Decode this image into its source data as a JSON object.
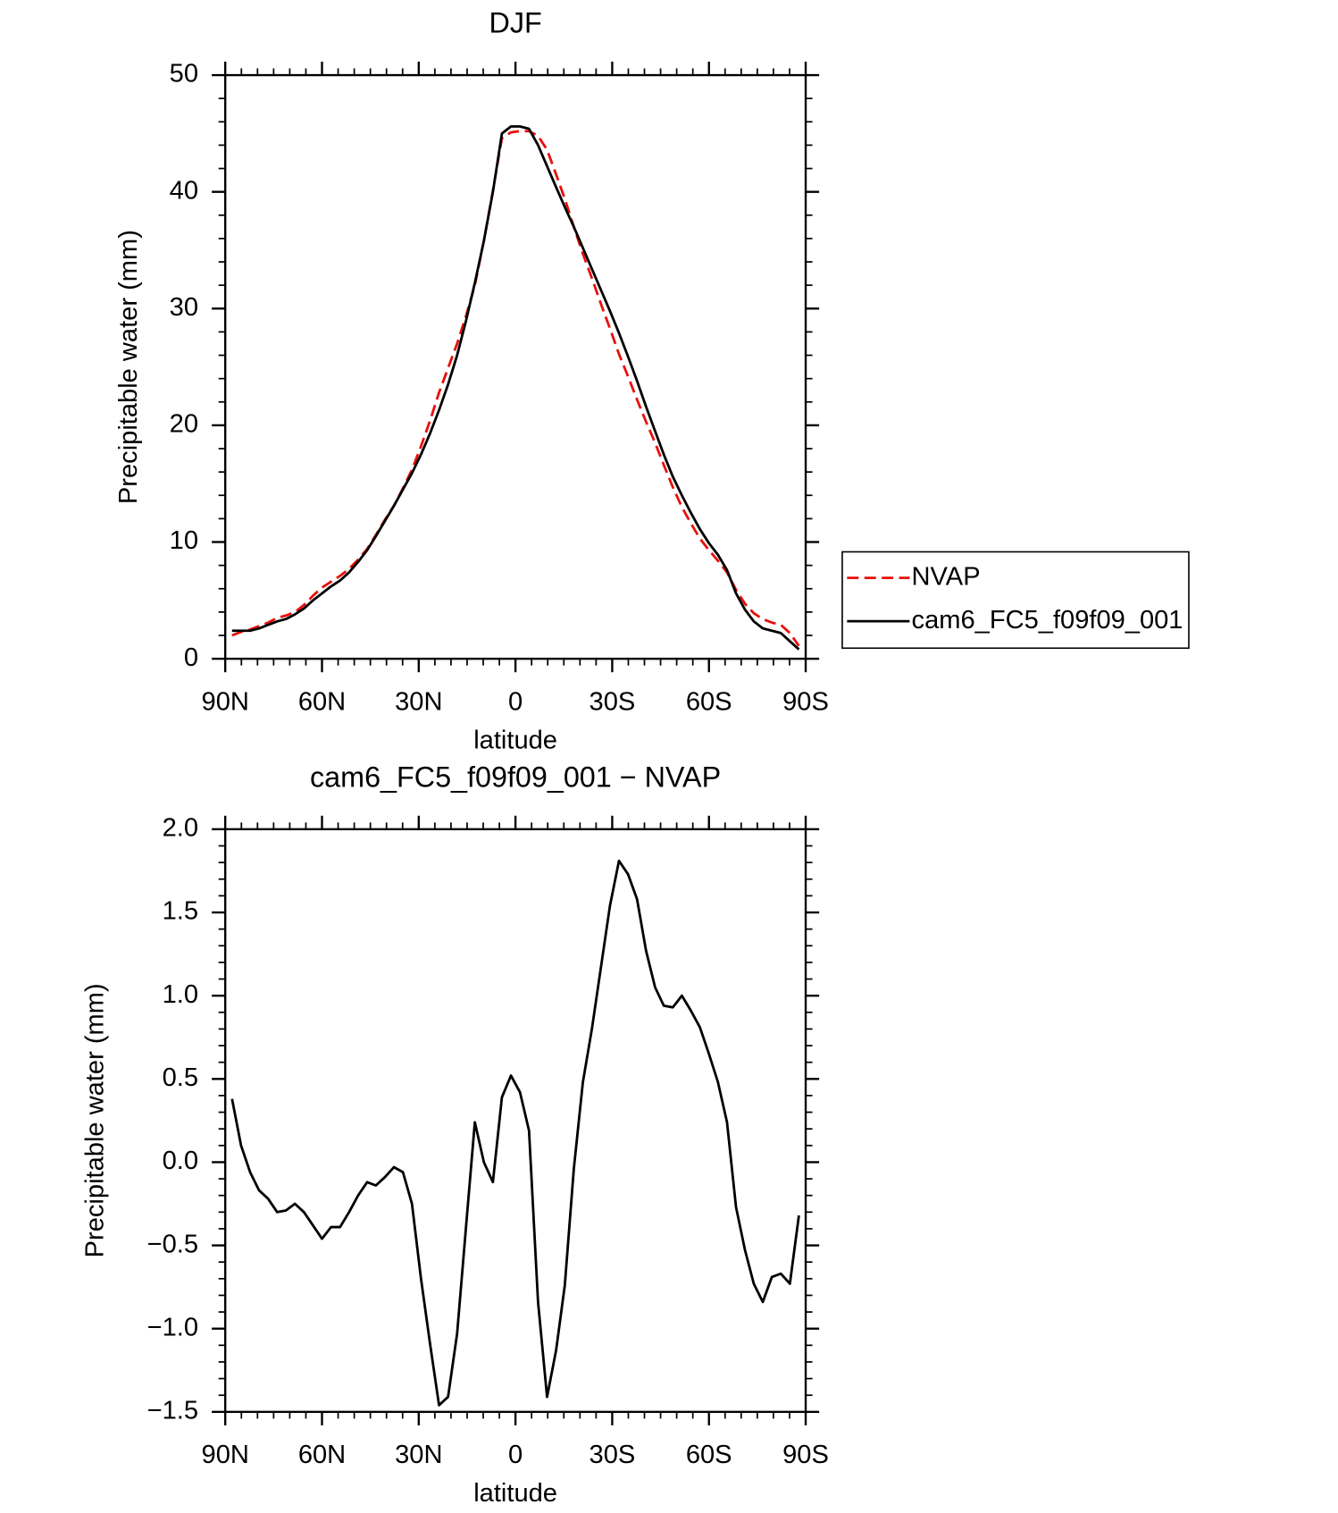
{
  "chart_data": [
    {
      "type": "line",
      "title": "DJF",
      "xlabel": "latitude",
      "ylabel": "Precipitable water (mm)",
      "x": [
        87.9,
        85.1,
        82.3,
        79.5,
        76.7,
        73.9,
        71.2,
        68.4,
        65.6,
        62.8,
        60.0,
        57.2,
        54.4,
        51.6,
        48.8,
        46.0,
        43.3,
        40.5,
        37.7,
        34.9,
        32.1,
        29.3,
        26.5,
        23.7,
        20.9,
        18.1,
        15.3,
        12.6,
        9.8,
        7.0,
        4.2,
        1.4,
        -1.4,
        -4.2,
        -7.0,
        -9.8,
        -12.6,
        -15.3,
        -18.1,
        -20.9,
        -23.7,
        -26.5,
        -29.3,
        -32.1,
        -34.9,
        -37.7,
        -40.5,
        -43.3,
        -46.0,
        -48.8,
        -51.6,
        -54.4,
        -57.2,
        -60.0,
        -62.8,
        -65.6,
        -68.4,
        -71.2,
        -73.9,
        -76.7,
        -79.5,
        -82.3,
        -85.1,
        -87.9
      ],
      "series": [
        {
          "name": "NVAP",
          "color": "#e8100c",
          "linestyle": "dashed",
          "values": [
            2.0,
            2.3,
            2.5,
            2.8,
            3.1,
            3.5,
            3.7,
            4.0,
            4.6,
            5.4,
            6.1,
            6.6,
            7.1,
            7.7,
            8.5,
            9.4,
            10.6,
            11.9,
            13.1,
            14.6,
            16.2,
            18.2,
            20.4,
            22.8,
            24.9,
            27.0,
            29.4,
            32.0,
            35.8,
            40.1,
            44.6,
            45.1,
            45.2,
            45.2,
            44.8,
            43.6,
            41.5,
            39.4,
            37.0,
            34.7,
            32.6,
            30.4,
            28.3,
            26.1,
            24.2,
            22.2,
            20.3,
            18.5,
            16.6,
            14.7,
            13.0,
            11.6,
            10.3,
            9.3,
            8.4,
            7.4,
            5.9,
            4.7,
            3.9,
            3.4,
            3.1,
            2.9,
            2.2,
            1.1
          ]
        },
        {
          "name": "cam6_FC5_f09f09_001",
          "color": "#000000",
          "linestyle": "solid",
          "values": [
            2.4,
            2.4,
            2.4,
            2.6,
            2.9,
            3.2,
            3.4,
            3.8,
            4.3,
            5.0,
            5.6,
            6.2,
            6.7,
            7.4,
            8.3,
            9.3,
            10.5,
            11.8,
            13.1,
            14.5,
            15.9,
            17.5,
            19.3,
            21.3,
            23.5,
            26.0,
            29.0,
            32.2,
            35.8,
            40.0,
            45.0,
            45.6,
            45.6,
            45.4,
            44.0,
            42.2,
            40.4,
            38.7,
            37.0,
            35.2,
            33.4,
            31.6,
            29.8,
            27.9,
            25.9,
            23.8,
            21.6,
            19.5,
            17.5,
            15.6,
            14.0,
            12.5,
            11.1,
            9.9,
            8.9,
            7.6,
            5.6,
            4.2,
            3.2,
            2.6,
            2.4,
            2.2,
            1.5,
            0.8
          ]
        }
      ],
      "xlim": [
        90,
        -90
      ],
      "xticks": [
        {
          "value": 90,
          "label": "90N"
        },
        {
          "value": 60,
          "label": "60N"
        },
        {
          "value": 30,
          "label": "30N"
        },
        0,
        {
          "value": -30,
          "label": "30S"
        },
        {
          "value": -60,
          "label": "60S"
        },
        {
          "value": -90,
          "label": "90S"
        }
      ],
      "ylim": [
        0,
        50
      ],
      "yticks": [
        0,
        10,
        20,
        30,
        40,
        50
      ],
      "legend": "right",
      "grid": false
    },
    {
      "type": "line",
      "title": "cam6_FC5_f09f09_001 − NVAP",
      "xlabel": "latitude",
      "ylabel": "Precipitable water (mm)",
      "x": [
        87.9,
        85.1,
        82.3,
        79.5,
        76.7,
        73.9,
        71.2,
        68.4,
        65.6,
        62.8,
        60.0,
        57.2,
        54.4,
        51.6,
        48.8,
        46.0,
        43.3,
        40.5,
        37.7,
        34.9,
        32.1,
        29.3,
        26.5,
        23.7,
        20.9,
        18.1,
        15.3,
        12.6,
        9.8,
        7.0,
        4.2,
        1.4,
        -1.4,
        -4.2,
        -7.0,
        -9.8,
        -12.6,
        -15.3,
        -18.1,
        -20.9,
        -23.7,
        -26.5,
        -29.3,
        -32.1,
        -34.9,
        -37.7,
        -40.5,
        -43.3,
        -46.0,
        -48.8,
        -51.6,
        -54.4,
        -57.2,
        -60.0,
        -62.8,
        -65.6,
        -68.4,
        -71.2,
        -73.9,
        -76.7,
        -79.5,
        -82.3,
        -85.1,
        -87.9
      ],
      "series": [
        {
          "color": "#000000",
          "linestyle": "solid",
          "values": [
            0.38,
            0.1,
            -0.06,
            -0.17,
            -0.22,
            -0.3,
            -0.29,
            -0.25,
            -0.3,
            -0.38,
            -0.46,
            -0.39,
            -0.39,
            -0.3,
            -0.2,
            -0.12,
            -0.14,
            -0.09,
            -0.03,
            -0.06,
            -0.25,
            -0.7,
            -1.09,
            -1.46,
            -1.41,
            -1.03,
            -0.38,
            0.24,
            0.0,
            -0.12,
            0.39,
            0.52,
            0.42,
            0.19,
            -0.84,
            -1.41,
            -1.13,
            -0.74,
            -0.04,
            0.48,
            0.8,
            1.17,
            1.54,
            1.81,
            1.73,
            1.58,
            1.27,
            1.05,
            0.94,
            0.93,
            1.0,
            0.91,
            0.81,
            0.65,
            0.48,
            0.24,
            -0.27,
            -0.53,
            -0.73,
            -0.84,
            -0.69,
            -0.67,
            -0.73,
            -0.32
          ]
        }
      ],
      "xlim": [
        90,
        -90
      ],
      "xticks": [
        {
          "value": 90,
          "label": "90N"
        },
        {
          "value": 60,
          "label": "60N"
        },
        {
          "value": 30,
          "label": "30N"
        },
        0,
        {
          "value": -30,
          "label": "30S"
        },
        {
          "value": -60,
          "label": "60S"
        },
        {
          "value": -90,
          "label": "90S"
        }
      ],
      "ylim": [
        -1.5,
        2.0
      ],
      "yticks": [
        {
          "value": -1.5,
          "label": "−1.5"
        },
        {
          "value": -1.0,
          "label": "−1.0"
        },
        {
          "value": -0.5,
          "label": "−0.5"
        },
        {
          "value": 0,
          "label": "0.0"
        },
        {
          "value": 0.5,
          "label": "0.5"
        },
        {
          "value": 1.0,
          "label": "1.0"
        },
        {
          "value": 1.5,
          "label": "1.5"
        },
        {
          "value": 2.0,
          "label": "2.0"
        }
      ],
      "grid": false
    }
  ]
}
